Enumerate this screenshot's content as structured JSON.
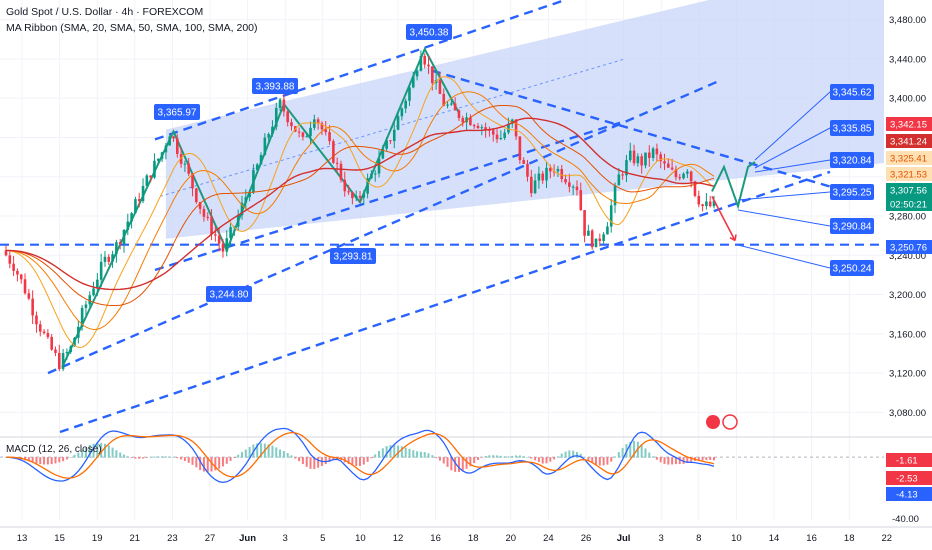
{
  "header": {
    "title": "Gold Spot / U.S. Dollar · 4h · FOREXCOM",
    "indicator": "MA Ribbon (SMA, 20, SMA, 50, SMA, 100, SMA, 200)",
    "macd_title": "MACD (12, 26, close)"
  },
  "colors": {
    "bull": "#089981",
    "bear": "#f23645",
    "accent": "#2962ff",
    "ma20": "#f7a21b",
    "ma50": "#f57c00",
    "ma100": "#e65100",
    "ma200": "#d32f2f",
    "macd": "#2962ff",
    "signal": "#ff6d00"
  },
  "chart_data": [
    {
      "type": "candlestick",
      "title": "Gold Spot / U.S. Dollar",
      "timeframe": "4h",
      "ylim": [
        3060,
        3500
      ],
      "y_ticks": [
        3080,
        3120,
        3160,
        3200,
        3240,
        3280,
        3320,
        3360,
        3400,
        3440,
        3480
      ],
      "x_ticks": [
        "13",
        "15",
        "19",
        "21",
        "23",
        "27",
        "Jun",
        "3",
        "5",
        "10",
        "12",
        "16",
        "18",
        "20",
        "24",
        "26",
        "Jul",
        "3",
        "8",
        "10",
        "14",
        "16",
        "18",
        "22"
      ],
      "price_path": [
        [
          0,
          3245
        ],
        [
          6,
          3230
        ],
        [
          12,
          3205
        ],
        [
          18,
          3175
        ],
        [
          24,
          3150
        ],
        [
          30,
          3130
        ],
        [
          36,
          3145
        ],
        [
          42,
          3180
        ],
        [
          48,
          3210
        ],
        [
          54,
          3235
        ],
        [
          60,
          3250
        ],
        [
          66,
          3275
        ],
        [
          72,
          3300
        ],
        [
          78,
          3325
        ],
        [
          84,
          3345
        ],
        [
          88,
          3366
        ],
        [
          94,
          3340
        ],
        [
          100,
          3310
        ],
        [
          106,
          3280
        ],
        [
          112,
          3260
        ],
        [
          116,
          3245
        ],
        [
          122,
          3270
        ],
        [
          128,
          3300
        ],
        [
          134,
          3330
        ],
        [
          140,
          3365
        ],
        [
          146,
          3394
        ],
        [
          152,
          3375
        ],
        [
          158,
          3355
        ],
        [
          164,
          3385
        ],
        [
          170,
          3360
        ],
        [
          176,
          3330
        ],
        [
          182,
          3300
        ],
        [
          186,
          3294
        ],
        [
          192,
          3315
        ],
        [
          198,
          3335
        ],
        [
          204,
          3360
        ],
        [
          210,
          3390
        ],
        [
          216,
          3420
        ],
        [
          220,
          3450
        ],
        [
          226,
          3420
        ],
        [
          232,
          3395
        ],
        [
          238,
          3385
        ],
        [
          244,
          3380
        ],
        [
          250,
          3375
        ],
        [
          256,
          3365
        ],
        [
          262,
          3360
        ],
        [
          268,
          3375
        ],
        [
          272,
          3340
        ],
        [
          278,
          3310
        ],
        [
          284,
          3320
        ],
        [
          290,
          3330
        ],
        [
          296,
          3320
        ],
        [
          302,
          3310
        ],
        [
          306,
          3265
        ],
        [
          312,
          3250
        ],
        [
          318,
          3275
        ],
        [
          324,
          3320
        ],
        [
          330,
          3340
        ],
        [
          336,
          3335
        ],
        [
          342,
          3345
        ],
        [
          348,
          3330
        ],
        [
          354,
          3320
        ],
        [
          360,
          3330
        ],
        [
          364,
          3305
        ],
        [
          368,
          3290
        ],
        [
          372,
          3290
        ]
      ],
      "current_price": "3,307.56",
      "countdown": "02:50:21",
      "callouts": [
        "3,365.97",
        "3,393.88",
        "3,450.38",
        "3,293.81",
        "3,244.80"
      ],
      "levels": [
        "3,345.62",
        "3,335.85",
        "3,320.84",
        "3,295.25",
        "3,290.84",
        "3,250.24"
      ],
      "horizontal_level": "3,250.76",
      "ma_tags": [
        "3,342.15",
        "3,341.24",
        "3,325.41",
        "3,321.53"
      ]
    },
    {
      "type": "macd",
      "title": "MACD (12, 26, close)",
      "ylim": [
        -44,
        12
      ],
      "y_ticks": [
        "-40.00"
      ],
      "tags": [
        "-1.61",
        "-2.53",
        "-4.13"
      ]
    }
  ]
}
